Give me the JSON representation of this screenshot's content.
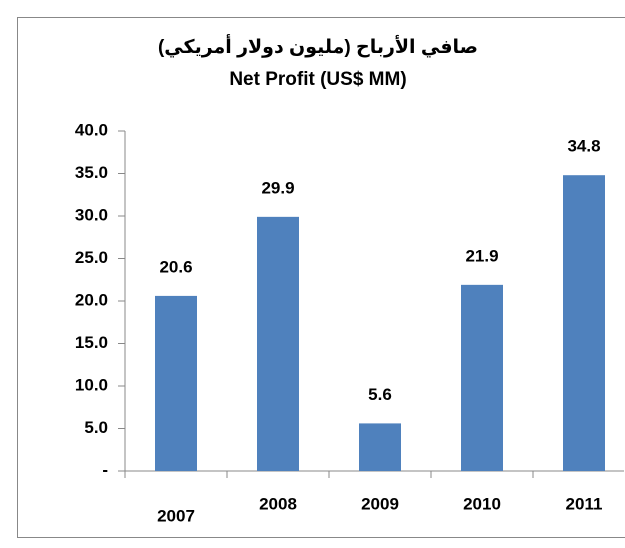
{
  "chart_data": {
    "type": "bar",
    "title": "صافي الأرباح (مليون دولار أمريكي)",
    "subtitle": "Net Profit (US$ MM)",
    "categories": [
      "2007",
      "2008",
      "2009",
      "2010",
      "2011"
    ],
    "values": [
      20.6,
      29.9,
      5.6,
      21.9,
      34.8
    ],
    "color": "#4f81bd",
    "ylim": [
      0,
      40
    ],
    "yticks": [
      {
        "value": 0,
        "label": "-"
      },
      {
        "value": 5,
        "label": "5.0"
      },
      {
        "value": 10,
        "label": "10.0"
      },
      {
        "value": 15,
        "label": "15.0"
      },
      {
        "value": 20,
        "label": "20.0"
      },
      {
        "value": 25,
        "label": "25.0"
      },
      {
        "value": 30,
        "label": "30.0"
      },
      {
        "value": 35,
        "label": "35.0"
      },
      {
        "value": 40,
        "label": "40.0"
      }
    ],
    "grid": false
  }
}
